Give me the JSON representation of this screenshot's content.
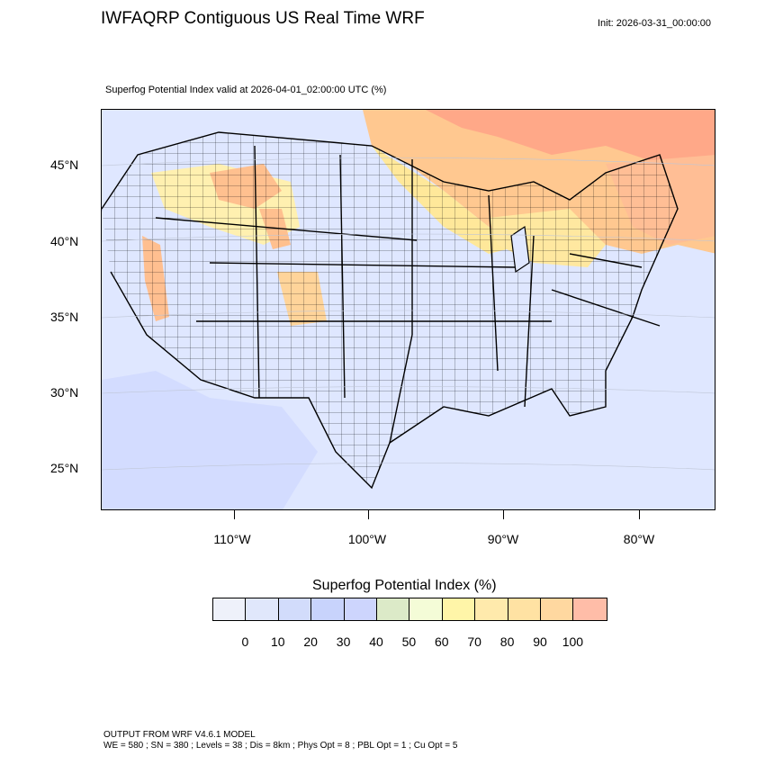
{
  "header": {
    "title": "IWFAQRP Contiguous US Real Time WRF",
    "init": "Init: 2026-03-31_00:00:00",
    "subtitle": "Superfog Potential Index valid at 2026-04-01_02:00:00 UTC   (%)"
  },
  "map": {
    "latitude_labels": [
      "45°N",
      "40°N",
      "35°N",
      "30°N",
      "25°N"
    ],
    "longitude_labels": [
      "110°W",
      "100°W",
      "90°W",
      "80°W"
    ],
    "fields": {
      "background": "#dde6ff",
      "low_band": "#c7d3ff",
      "mid_band": "#ffe88f",
      "high_band": "#ffc38a",
      "peak_band": "#ff9f80",
      "land_lines": "#000000"
    }
  },
  "colorbar": {
    "title": "Superfog Potential Index  (%)",
    "colors": [
      "#eef1fa",
      "#e0e7fb",
      "#d2dcfb",
      "#c8d3fc",
      "#cdd5fd",
      "#dceac8",
      "#f4fcd7",
      "#fff5a8",
      "#ffeaac",
      "#ffe2a3",
      "#ffd8a0",
      "#ffbda8"
    ],
    "tick_labels": [
      "0",
      "10",
      "20",
      "30",
      "40",
      "50",
      "60",
      "70",
      "80",
      "90",
      "100"
    ]
  },
  "footer": {
    "line1": "OUTPUT FROM WRF V4.6.1 MODEL",
    "line2": "WE = 580 ; SN = 380 ; Levels = 38 ; Dis = 8km ; Phys Opt = 8 ; PBL Opt = 1 ; Cu Opt = 5"
  }
}
